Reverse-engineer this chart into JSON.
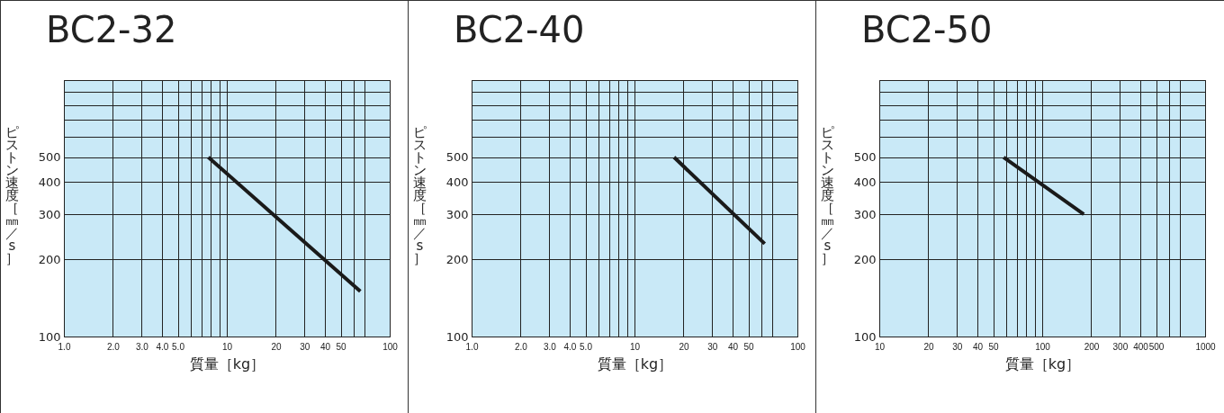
{
  "chart_data": [
    {
      "type": "line",
      "title": "BC2-32",
      "xlabel": "質量［kg］",
      "ylabel": "ピストン速度［㎜／s］",
      "log": "xy",
      "grid": true,
      "series": [
        {
          "color": "#1a1a1a",
          "x": [
            7.7,
            66
          ],
          "values": [
            500,
            150
          ]
        }
      ],
      "xlim": [
        1,
        100
      ],
      "ylim": [
        100,
        1000
      ],
      "xticks": [
        {
          "value": 1,
          "label": "1.0"
        },
        {
          "value": 2,
          "label": "2.0"
        },
        {
          "value": 3,
          "label": "3.0"
        },
        {
          "value": 4,
          "label": "4.0"
        },
        {
          "value": 5,
          "label": "5.0"
        },
        {
          "value": 6,
          "label": null
        },
        {
          "value": 7,
          "label": null
        },
        {
          "value": 8,
          "label": null
        },
        {
          "value": 9,
          "label": null
        },
        10,
        20,
        30,
        40,
        50,
        {
          "value": 60,
          "label": null
        },
        {
          "value": 70,
          "label": null
        },
        100
      ],
      "yticks": [
        100,
        200,
        300,
        400,
        500,
        {
          "value": 600,
          "label": null
        },
        {
          "value": 700,
          "label": null
        },
        {
          "value": 800,
          "label": null
        },
        {
          "value": 900,
          "label": null
        },
        {
          "value": 1000,
          "label": null
        }
      ]
    },
    {
      "type": "line",
      "title": "BC2-40",
      "xlabel": "質量［kg］",
      "ylabel": "ピストン速度［㎜／s］",
      "log": "xy",
      "grid": true,
      "series": [
        {
          "color": "#1a1a1a",
          "x": [
            17.5,
            63
          ],
          "values": [
            500,
            230
          ]
        }
      ],
      "xlim": [
        1,
        100
      ],
      "ylim": [
        100,
        1000
      ],
      "xticks": [
        {
          "value": 1,
          "label": "1.0"
        },
        {
          "value": 2,
          "label": "2.0"
        },
        {
          "value": 3,
          "label": "3.0"
        },
        {
          "value": 4,
          "label": "4.0"
        },
        {
          "value": 5,
          "label": "5.0"
        },
        {
          "value": 6,
          "label": null
        },
        {
          "value": 7,
          "label": null
        },
        {
          "value": 8,
          "label": null
        },
        {
          "value": 9,
          "label": null
        },
        10,
        20,
        30,
        40,
        50,
        {
          "value": 60,
          "label": null
        },
        {
          "value": 70,
          "label": null
        },
        100
      ],
      "yticks": [
        100,
        200,
        300,
        400,
        500,
        {
          "value": 600,
          "label": null
        },
        {
          "value": 700,
          "label": null
        },
        {
          "value": 800,
          "label": null
        },
        {
          "value": 900,
          "label": null
        },
        {
          "value": 1000,
          "label": null
        }
      ]
    },
    {
      "type": "line",
      "title": "BC2-50",
      "xlabel": "質量［kg］",
      "ylabel": "ピストン速度［㎜／s］",
      "log": "xy",
      "grid": true,
      "series": [
        {
          "color": "#1a1a1a",
          "x": [
            58,
            180
          ],
          "values": [
            500,
            300
          ]
        }
      ],
      "xlim": [
        10,
        1000
      ],
      "ylim": [
        100,
        1000
      ],
      "xticks": [
        10,
        20,
        30,
        40,
        50,
        {
          "value": 60,
          "label": null
        },
        {
          "value": 70,
          "label": null
        },
        {
          "value": 80,
          "label": null
        },
        {
          "value": 90,
          "label": null
        },
        100,
        200,
        300,
        400,
        500,
        {
          "value": 600,
          "label": null
        },
        {
          "value": 700,
          "label": null
        },
        1000
      ],
      "yticks": [
        100,
        200,
        300,
        400,
        500,
        {
          "value": 600,
          "label": null
        },
        {
          "value": 700,
          "label": null
        },
        {
          "value": 800,
          "label": null
        },
        {
          "value": 900,
          "label": null
        },
        {
          "value": 1000,
          "label": null
        }
      ]
    }
  ]
}
